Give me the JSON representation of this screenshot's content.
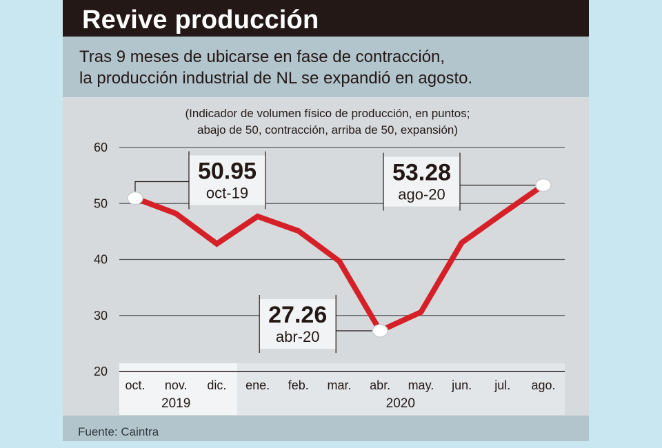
{
  "header": {
    "title": "Revive producción",
    "subtitle_lines": [
      "Tras 9 meses de ubicarse en fase de contracción,",
      "la producción industrial de NL se expandió en agosto."
    ]
  },
  "source": "Fuente: Caintra",
  "colors": {
    "title_bg": "#231815",
    "band": "#b2c4cc",
    "panel": "#d6dadc",
    "line": "#d62027"
  },
  "chart_data": {
    "type": "line",
    "note_lines": [
      "(Indicador de volumen físico de producción, en puntos;",
      "abajo de 50, contracción, arriba de 50, expansión)"
    ],
    "ylim": [
      20,
      60
    ],
    "yticks": [
      20,
      30,
      40,
      50,
      60
    ],
    "categories": [
      "oct.",
      "nov.",
      "dic.",
      "ene.",
      "feb.",
      "mar.",
      "abr.",
      "may.",
      "jun.",
      "jul.",
      "ago."
    ],
    "year_groups": [
      {
        "label": "2019",
        "start": 0,
        "end": 2
      },
      {
        "label": "2020",
        "start": 3,
        "end": 10
      }
    ],
    "series": [
      {
        "name": "Producción industrial NL",
        "values": [
          50.95,
          48.2,
          42.8,
          47.7,
          45.1,
          39.7,
          27.26,
          30.6,
          43.0,
          48.2,
          53.28
        ]
      }
    ],
    "annotations": [
      {
        "index": 0,
        "value": "50.95",
        "date": "oct-19"
      },
      {
        "index": 6,
        "value": "27.26",
        "date": "abr-20"
      },
      {
        "index": 10,
        "value": "53.28",
        "date": "ago-20"
      }
    ]
  }
}
